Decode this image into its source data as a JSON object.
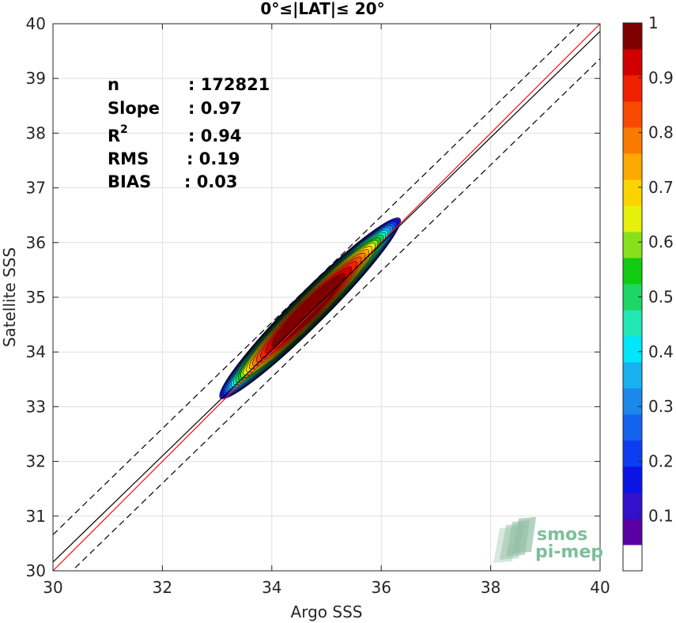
{
  "chart_data": {
    "type": "heatmap",
    "subtype": "density-contour-scatter",
    "title": "0°≤|LAT|≤ 20°",
    "xlabel": "Argo SSS",
    "ylabel": "Satellite SSS",
    "xlim": [
      30,
      40
    ],
    "ylim": [
      30,
      40
    ],
    "xticks": [
      30,
      32,
      34,
      36,
      38,
      40
    ],
    "yticks": [
      30,
      31,
      32,
      33,
      34,
      35,
      36,
      37,
      38,
      39,
      40
    ],
    "grid": true,
    "stats": [
      {
        "label": "n",
        "sep": ": ",
        "value": "172821"
      },
      {
        "label": "Slope",
        "sep": ": ",
        "value": "0.97"
      },
      {
        "label": "R",
        "sup": "2",
        "sep": ": ",
        "value": "0.94"
      },
      {
        "label": "RMS",
        "sep": ": ",
        "value": "0.19"
      },
      {
        "label": "BIAS",
        "sep": ": ",
        "value": "0.03"
      }
    ],
    "density_center": {
      "x": 34.7,
      "y": 34.8
    },
    "density_extent": {
      "x": [
        33.1,
        36.45
      ],
      "y": [
        33.15,
        36.5
      ]
    },
    "contour_levels": [
      0.05,
      0.1,
      0.15,
      0.2,
      0.25,
      0.3,
      0.35,
      0.4,
      0.45,
      0.5,
      0.55,
      0.6,
      0.65,
      0.7,
      0.75,
      0.8,
      0.85,
      0.9,
      0.95
    ],
    "lines": [
      {
        "name": "1:1 line",
        "color": "#e8141a",
        "style": "solid",
        "points": [
          [
            30,
            30
          ],
          [
            40,
            40
          ]
        ]
      },
      {
        "name": "regression",
        "color": "#000000",
        "style": "solid",
        "points": [
          [
            30,
            30.16
          ],
          [
            40,
            39.86
          ]
        ]
      },
      {
        "name": "upper bound",
        "color": "#000000",
        "style": "dashed",
        "points": [
          [
            30,
            30.66
          ],
          [
            40,
            40.36
          ]
        ]
      },
      {
        "name": "lower bound",
        "color": "#000000",
        "style": "dashed",
        "points": [
          [
            30,
            29.66
          ],
          [
            40,
            39.36
          ]
        ]
      }
    ],
    "colorbar": {
      "min": 0,
      "max": 1,
      "ticks": [
        0.1,
        0.2,
        0.3,
        0.4,
        0.5,
        0.6,
        0.7,
        0.8,
        0.9,
        1
      ],
      "tick_labels": [
        "0.1",
        "0.2",
        "0.3",
        "0.4",
        "0.5",
        "0.6",
        "0.7",
        "0.8",
        "0.9",
        "1"
      ],
      "colors": [
        "#ffffff",
        "#5a00a3",
        "#3111cc",
        "#0a14e6",
        "#0d3cf2",
        "#1463ee",
        "#1a88ea",
        "#18b0ee",
        "#02e6fa",
        "#22e8b5",
        "#1ed664",
        "#11cc11",
        "#88e01a",
        "#e6f00a",
        "#fbd400",
        "#fba800",
        "#fa7a00",
        "#f74a00",
        "#f02000",
        "#d00000",
        "#800000"
      ]
    },
    "watermark": {
      "line1": "smos",
      "line2": "pi-mep"
    }
  }
}
